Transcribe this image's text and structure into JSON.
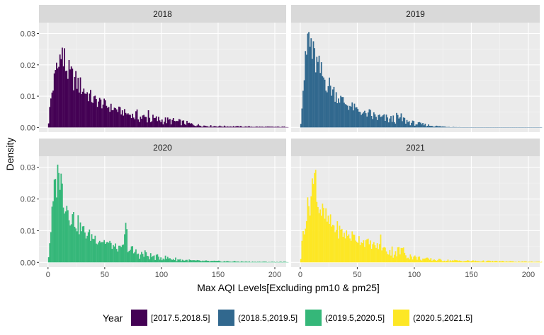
{
  "chart_data": {
    "type": "histogram-facet",
    "xlabel": "Max AQI Levels[Excluding pm10 & pm25]",
    "ylabel": "Density",
    "xlim": [
      -8,
      210
    ],
    "ylim": [
      -0.0015,
      0.0335
    ],
    "x_ticks": [
      0,
      50,
      100,
      150,
      200
    ],
    "x_tick_labels": [
      "0",
      "50",
      "100",
      "150",
      "200"
    ],
    "y_ticks": [
      0,
      0.01,
      0.02,
      0.03
    ],
    "y_tick_labels": [
      "0.00",
      "0.01",
      "0.02",
      "0.03"
    ],
    "grid": true,
    "legend": {
      "title": "Year",
      "position": "bottom",
      "entries": [
        {
          "label": "[2017.5,2018.5]",
          "color": "#440154"
        },
        {
          "label": "(2018.5,2019.5]",
          "color": "#31688E"
        },
        {
          "label": "(2019.5,2020.5]",
          "color": "#35B779"
        },
        {
          "label": "(2020.5,2021.5]",
          "color": "#FDE725"
        }
      ]
    },
    "panels": [
      {
        "strip": "2018",
        "color": "#440154",
        "profile": [
          [
            0,
            0.0002
          ],
          [
            1,
            0.004
          ],
          [
            2,
            0.008
          ],
          [
            4,
            0.013
          ],
          [
            6,
            0.016
          ],
          [
            8,
            0.019
          ],
          [
            10,
            0.02
          ],
          [
            12,
            0.022
          ],
          [
            14,
            0.021
          ],
          [
            16,
            0.02
          ],
          [
            18,
            0.018
          ],
          [
            20,
            0.017
          ],
          [
            25,
            0.015
          ],
          [
            30,
            0.013
          ],
          [
            35,
            0.011
          ],
          [
            40,
            0.009
          ],
          [
            45,
            0.0085
          ],
          [
            50,
            0.0075
          ],
          [
            55,
            0.0065
          ],
          [
            60,
            0.006
          ],
          [
            65,
            0.0052
          ],
          [
            70,
            0.0045
          ],
          [
            75,
            0.004
          ],
          [
            80,
            0.0035
          ],
          [
            85,
            0.003
          ],
          [
            90,
            0.0028
          ],
          [
            100,
            0.0023
          ],
          [
            110,
            0.002
          ],
          [
            120,
            0.0015
          ],
          [
            130,
            0.0008
          ],
          [
            140,
            0.0005
          ],
          [
            150,
            0.0004
          ],
          [
            170,
            0.0003
          ],
          [
            190,
            0.0002
          ],
          [
            212,
            0.0002
          ]
        ],
        "spikes": [
          [
            12,
            0.0255
          ],
          [
            14,
            0.0253
          ],
          [
            10,
            0.0233
          ],
          [
            7,
            0.0207
          ],
          [
            20,
            0.0195
          ],
          [
            88,
            0.0055
          ]
        ]
      },
      {
        "strip": "2019",
        "color": "#31688E",
        "profile": [
          [
            0,
            0.0003
          ],
          [
            1,
            0.005
          ],
          [
            2,
            0.011
          ],
          [
            4,
            0.019
          ],
          [
            6,
            0.025
          ],
          [
            8,
            0.026
          ],
          [
            10,
            0.0245
          ],
          [
            12,
            0.023
          ],
          [
            14,
            0.021
          ],
          [
            16,
            0.0195
          ],
          [
            18,
            0.018
          ],
          [
            20,
            0.0165
          ],
          [
            25,
            0.014
          ],
          [
            30,
            0.0115
          ],
          [
            35,
            0.0095
          ],
          [
            40,
            0.0078
          ],
          [
            45,
            0.0068
          ],
          [
            50,
            0.0058
          ],
          [
            55,
            0.0048
          ],
          [
            60,
            0.004
          ],
          [
            65,
            0.0035
          ],
          [
            70,
            0.003
          ],
          [
            80,
            0.0025
          ],
          [
            85,
            0.003
          ],
          [
            90,
            0.0025
          ],
          [
            95,
            0.0018
          ],
          [
            100,
            0.0013
          ],
          [
            110,
            0.0008
          ],
          [
            120,
            0.0004
          ],
          [
            130,
            0.0002
          ],
          [
            140,
            8e-05
          ],
          [
            150,
            4e-05
          ],
          [
            170,
            2e-05
          ],
          [
            212,
            2e-05
          ]
        ],
        "spikes": [
          [
            6,
            0.03
          ],
          [
            7,
            0.0305
          ],
          [
            9,
            0.0285
          ],
          [
            88,
            0.0045
          ]
        ]
      },
      {
        "strip": "2020",
        "color": "#35B779",
        "profile": [
          [
            0,
            0.0005
          ],
          [
            1,
            0.004
          ],
          [
            2,
            0.009
          ],
          [
            4,
            0.017
          ],
          [
            6,
            0.024
          ],
          [
            8,
            0.027
          ],
          [
            10,
            0.027
          ],
          [
            12,
            0.025
          ],
          [
            14,
            0.021
          ],
          [
            16,
            0.019
          ],
          [
            18,
            0.017
          ],
          [
            20,
            0.0155
          ],
          [
            25,
            0.013
          ],
          [
            30,
            0.0105
          ],
          [
            35,
            0.009
          ],
          [
            40,
            0.0082
          ],
          [
            45,
            0.0074
          ],
          [
            50,
            0.0068
          ],
          [
            55,
            0.0058
          ],
          [
            60,
            0.0048
          ],
          [
            65,
            0.0042
          ],
          [
            68,
            0.0085
          ],
          [
            70,
            0.0045
          ],
          [
            75,
            0.0033
          ],
          [
            80,
            0.0028
          ],
          [
            85,
            0.0022
          ],
          [
            90,
            0.002
          ],
          [
            95,
            0.0016
          ],
          [
            100,
            0.0016
          ],
          [
            110,
            0.0011
          ],
          [
            120,
            0.0007
          ],
          [
            130,
            0.0005
          ],
          [
            140,
            0.0004
          ],
          [
            160,
            0.0003
          ],
          [
            180,
            0.0002
          ],
          [
            200,
            0.00015
          ],
          [
            212,
            0.00015
          ]
        ],
        "spikes": [
          [
            9,
            0.0282
          ],
          [
            11,
            0.028
          ],
          [
            68,
            0.0125
          ],
          [
            69,
            0.0105
          ],
          [
            85,
            0.0038
          ]
        ]
      },
      {
        "strip": "2021",
        "color": "#FDE725",
        "profile": [
          [
            0,
            0.0003
          ],
          [
            1,
            0.003
          ],
          [
            2,
            0.009
          ],
          [
            4,
            0.013
          ],
          [
            6,
            0.016
          ],
          [
            8,
            0.02
          ],
          [
            10,
            0.022
          ],
          [
            12,
            0.023
          ],
          [
            14,
            0.021
          ],
          [
            16,
            0.019
          ],
          [
            18,
            0.017
          ],
          [
            20,
            0.0155
          ],
          [
            25,
            0.013
          ],
          [
            30,
            0.0115
          ],
          [
            35,
            0.01
          ],
          [
            40,
            0.009
          ],
          [
            45,
            0.0085
          ],
          [
            50,
            0.0078
          ],
          [
            55,
            0.007
          ],
          [
            60,
            0.0062
          ],
          [
            65,
            0.0055
          ],
          [
            70,
            0.005
          ],
          [
            75,
            0.0042
          ],
          [
            80,
            0.0035
          ],
          [
            85,
            0.0035
          ],
          [
            90,
            0.0033
          ],
          [
            95,
            0.0022
          ],
          [
            100,
            0.0016
          ],
          [
            110,
            0.001
          ],
          [
            120,
            0.0008
          ],
          [
            130,
            0.0006
          ],
          [
            140,
            0.0005
          ],
          [
            160,
            0.0004
          ],
          [
            180,
            0.0003
          ],
          [
            200,
            0.0002
          ],
          [
            212,
            0.0002
          ]
        ],
        "spikes": [
          [
            13,
            0.0292
          ],
          [
            12,
            0.0282
          ],
          [
            10,
            0.0265
          ],
          [
            70,
            0.0088
          ],
          [
            89,
            0.0045
          ]
        ]
      }
    ]
  }
}
